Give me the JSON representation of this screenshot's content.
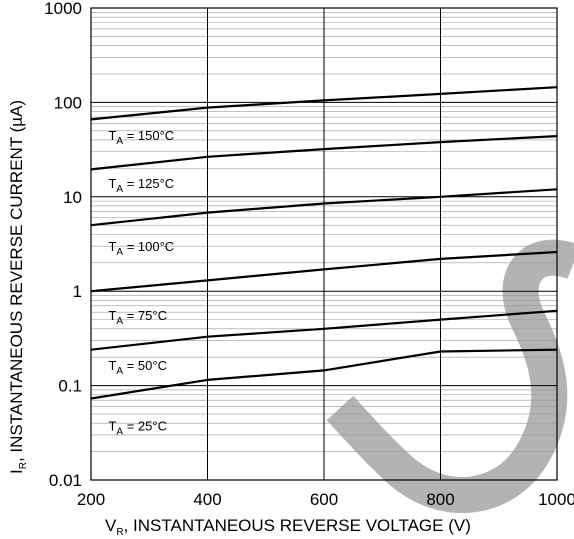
{
  "chart_data": {
    "type": "line",
    "title": "",
    "xlabel": {
      "var": "V",
      "sub": "R",
      "rest": ", INSTANTANEOUS REVERSE VOLTAGE (V)"
    },
    "ylabel": {
      "var": "I",
      "sub": "R",
      "rest": ", INSTANTANEOUS REVERSE CURRENT (µA)"
    },
    "x_scale": "linear",
    "y_scale": "log",
    "xlim": [
      200,
      1000
    ],
    "ylim": [
      0.01,
      1000
    ],
    "x_ticks": [
      "200",
      "400",
      "600",
      "800",
      "1000"
    ],
    "y_ticks": [
      "0.01",
      "0.1",
      "1",
      "10",
      "100",
      "1000"
    ],
    "grid": true,
    "legend": "none",
    "series": [
      {
        "name": "T_A = 150°C",
        "label": {
          "main": "T",
          "sub": "A",
          "rest": " = 150°C",
          "x": 230,
          "y": 45
        },
        "points": [
          [
            200,
            66
          ],
          [
            400,
            88
          ],
          [
            600,
            105
          ],
          [
            800,
            123
          ],
          [
            1000,
            145
          ]
        ]
      },
      {
        "name": "T_A = 125°C",
        "label": {
          "main": "T",
          "sub": "A",
          "rest": " = 125°C",
          "x": 230,
          "y": 14
        },
        "points": [
          [
            200,
            19.5
          ],
          [
            400,
            26.5
          ],
          [
            600,
            32
          ],
          [
            800,
            38
          ],
          [
            1000,
            44
          ]
        ]
      },
      {
        "name": "T_A = 100°C",
        "label": {
          "main": "T",
          "sub": "A",
          "rest": " = 100°C",
          "x": 230,
          "y": 3.0
        },
        "points": [
          [
            200,
            5
          ],
          [
            400,
            6.8
          ],
          [
            600,
            8.5
          ],
          [
            800,
            10
          ],
          [
            1000,
            12
          ]
        ]
      },
      {
        "name": "T_A = 75°C",
        "label": {
          "main": "T",
          "sub": "A",
          "rest": " = 75°C",
          "x": 230,
          "y": 0.56
        },
        "points": [
          [
            200,
            1.0
          ],
          [
            400,
            1.3
          ],
          [
            600,
            1.7
          ],
          [
            800,
            2.2
          ],
          [
            1000,
            2.6
          ]
        ]
      },
      {
        "name": "T_A = 50°C",
        "label": {
          "main": "T",
          "sub": "A",
          "rest": " = 50°C",
          "x": 230,
          "y": 0.165
        },
        "points": [
          [
            200,
            0.24
          ],
          [
            400,
            0.33
          ],
          [
            600,
            0.4
          ],
          [
            800,
            0.5
          ],
          [
            1000,
            0.62
          ]
        ]
      },
      {
        "name": "T_A = 25°C",
        "label": {
          "main": "T",
          "sub": "A",
          "rest": " = 25°C",
          "x": 230,
          "y": 0.038
        },
        "points": [
          [
            200,
            0.073
          ],
          [
            400,
            0.115
          ],
          [
            600,
            0.145
          ],
          [
            800,
            0.23
          ],
          [
            1000,
            0.24
          ]
        ]
      }
    ]
  },
  "colors": {
    "background": "#ffffff",
    "line": "#000000",
    "major_grid": "#000000",
    "minor_grid": "#9a9a9a",
    "watermark": "#b3b3b3"
  },
  "watermark": {
    "description": "large gray S-shaped watermark"
  }
}
